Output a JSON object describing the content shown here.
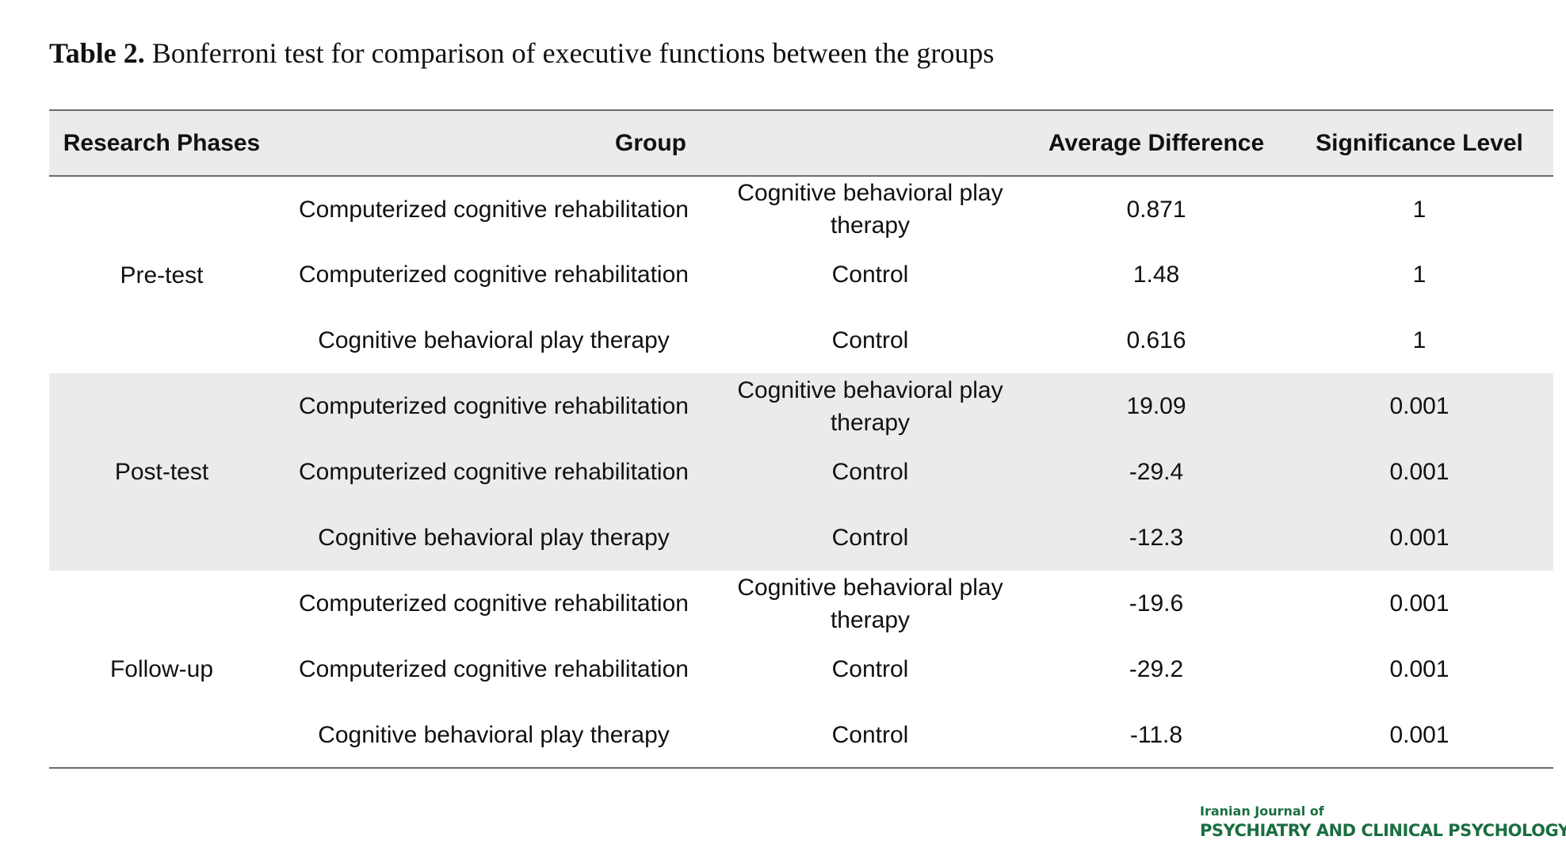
{
  "caption": {
    "label": "Table 2.",
    "text": " Bonferroni test for comparison of executive functions between the groups"
  },
  "table": {
    "headers": {
      "phase": "Research Phases",
      "group": "Group",
      "avg": "Average Difference",
      "sig": "Significance Level"
    },
    "phases": [
      {
        "name": "Pre-test",
        "rows": [
          {
            "g1": "Computerized cognitive rehabilitation",
            "g2": "Cognitive behavioral play therapy",
            "avg": "0.871",
            "sig": "1"
          },
          {
            "g1": "Computerized cognitive rehabilitation",
            "g2": "Control",
            "avg": "1.48",
            "sig": "1"
          },
          {
            "g1": "Cognitive behavioral play therapy",
            "g2": "Control",
            "avg": "0.616",
            "sig": "1"
          }
        ]
      },
      {
        "name": "Post-test",
        "rows": [
          {
            "g1": "Computerized cognitive rehabilitation",
            "g2": "Cognitive behavioral play therapy",
            "avg": "19.09",
            "sig": "0.001"
          },
          {
            "g1": "Computerized cognitive rehabilitation",
            "g2": "Control",
            "avg": "-29.4",
            "sig": "0.001"
          },
          {
            "g1": "Cognitive behavioral play therapy",
            "g2": "Control",
            "avg": "-12.3",
            "sig": "0.001"
          }
        ]
      },
      {
        "name": "Follow-up",
        "rows": [
          {
            "g1": "Computerized cognitive rehabilitation",
            "g2": "Cognitive behavioral play therapy",
            "avg": "-19.6",
            "sig": "0.001"
          },
          {
            "g1": "Computerized cognitive rehabilitation",
            "g2": "Control",
            "avg": "-29.2",
            "sig": "0.001"
          },
          {
            "g1": "Cognitive behavioral play therapy",
            "g2": "Control",
            "avg": "-11.8",
            "sig": "0.001"
          }
        ]
      }
    ]
  },
  "journal": {
    "line1": "Iranian Journal of",
    "line2": "PSYCHIATRY AND CLINICAL PSYCHOLOGY"
  }
}
